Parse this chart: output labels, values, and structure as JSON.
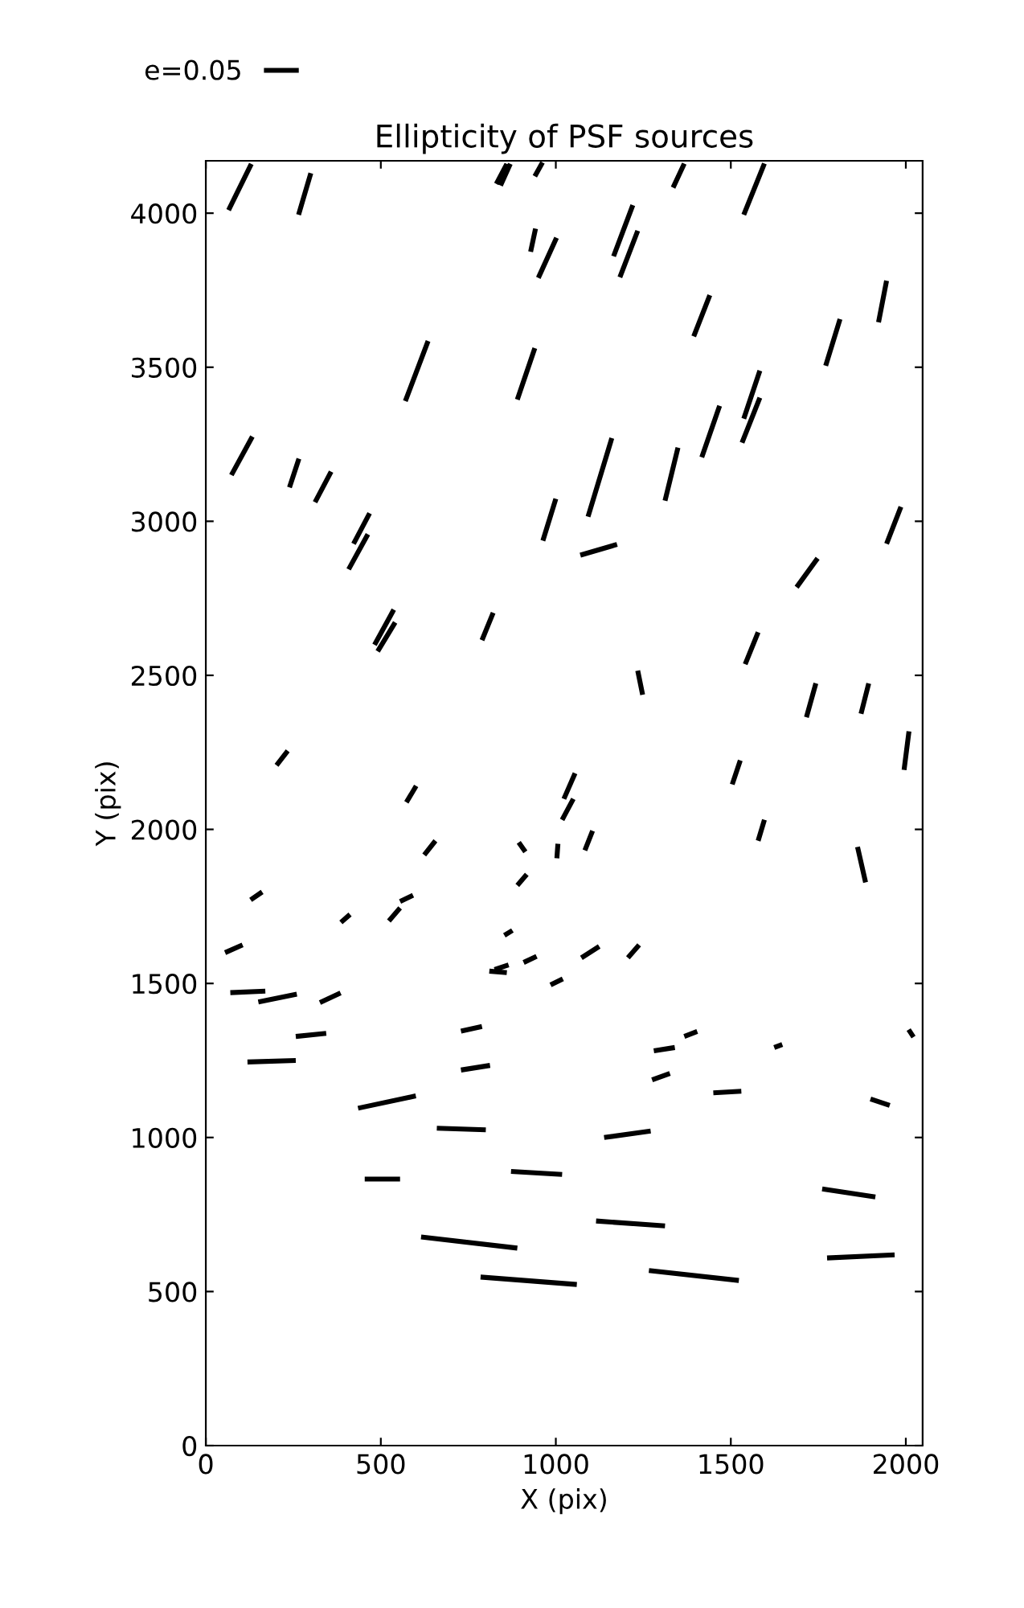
{
  "chart_data": {
    "type": "line",
    "title": "Ellipticity of PSF sources",
    "xlabel": "X (pix)",
    "ylabel": "Y (pix)",
    "xlim": [
      0,
      2048
    ],
    "ylim": [
      0,
      4170
    ],
    "xticks": [
      0,
      500,
      1000,
      1500,
      2000
    ],
    "yticks": [
      0,
      500,
      1000,
      1500,
      2000,
      2500,
      3000,
      3500,
      4000
    ],
    "grid": false,
    "legend": "top left",
    "marker": "none",
    "line_style": "solid",
    "series": [
      {
        "name": "e=0.05",
        "color": "#000000",
        "x": [
          65,
          130,
          null,
          265,
          300,
          null,
          830,
          860,
          null,
          842,
          870,
          null,
          940,
          962,
          null,
          928,
          942,
          null,
          950,
          1002,
          null,
          570,
          635,
          null,
          890,
          940,
          null,
          73,
          133,
          null,
          239,
          266,
          null,
          312,
          358,
          null,
          422,
          468,
          null,
          408,
          463,
          null,
          963,
          1000,
          null,
          1335,
          1367,
          null,
          1537,
          1596,
          null,
          1165,
          1220,
          null,
          1183,
          1234,
          null,
          1394,
          1440,
          null,
          1922,
          1945,
          null,
          1771,
          1812,
          null,
          1537,
          1583,
          null,
          1532,
          1583,
          null,
          1417,
          1468,
          null,
          1092,
          1160,
          null,
          1312,
          1349,
          null,
          1070,
          1175,
          null,
          1945,
          1986,
          null,
          1688,
          1748,
          null,
          482,
          537,
          null,
          491,
          541,
          null,
          789,
          821,
          null,
          202,
          234,
          null,
          573,
          601,
          null,
          624,
          656,
          null,
          894,
          913,
          null,
          1003,
          1006,
          null,
          890,
          917,
          null,
          128,
          161,
          null,
          386,
          412,
          null,
          523,
          555,
          null,
          555,
          592,
          null,
          853,
          876,
          null,
          810,
          860,
          null,
          825,
          865,
          null,
          908,
          945,
          null,
          985,
          1020,
          null,
          55,
          105,
          null,
          70,
          170,
          null,
          150,
          260,
          null,
          326,
          385,
          null,
          729,
          789,
          null,
          1541,
          1578,
          null,
          1234,
          1248,
          null,
          1716,
          1743,
          null,
          1872,
          1894,
          null,
          1995,
          2009,
          null,
          1023,
          1055,
          null,
          1018,
          1050,
          null,
          1083,
          1105,
          null,
          1504,
          1527,
          null,
          1578,
          1596,
          null,
          1862,
          1885,
          null,
          1073,
          1124,
          null,
          1206,
          1238,
          null,
          257,
          344,
          null,
          119,
          257,
          null,
          729,
          812,
          null,
          435,
          600,
          null,
          660,
          800,
          null,
          454,
          555,
          null,
          872,
          1018,
          null,
          615,
          890,
          null,
          785,
          1060,
          null,
          1367,
          1404,
          null,
          1280,
          1340,
          null,
          1624,
          1647,
          null,
          2008,
          2022,
          null,
          1275,
          1326,
          null,
          1450,
          1530,
          null,
          1899,
          1954,
          null,
          1138,
          1271,
          null,
          1761,
          1913,
          null,
          1115,
          1312,
          null,
          1266,
          1523,
          null,
          1775,
          1968
        ],
        "values": [
          4010,
          4160,
          null,
          3995,
          4130,
          null,
          4095,
          4160,
          null,
          4090,
          4160,
          null,
          4120,
          4165,
          null,
          3875,
          3950,
          null,
          3790,
          3920,
          null,
          3390,
          3585,
          null,
          3395,
          3562,
          null,
          3150,
          3275,
          null,
          3110,
          3203,
          null,
          3062,
          3161,
          null,
          2927,
          3026,
          null,
          2844,
          2958,
          null,
          2937,
          3073,
          null,
          4083,
          4161,
          null,
          3995,
          4161,
          null,
          3860,
          4026,
          null,
          3792,
          3943,
          null,
          3600,
          3734,
          null,
          3646,
          3781,
          null,
          3505,
          3656,
          null,
          3333,
          3489,
          null,
          3255,
          3401,
          null,
          3208,
          3375,
          null,
          3015,
          3270,
          null,
          3067,
          3239,
          null,
          2890,
          2925,
          null,
          2927,
          3047,
          null,
          2786,
          2880,
          null,
          2599,
          2713,
          null,
          2578,
          2672,
          null,
          2614,
          2703,
          null,
          2208,
          2255,
          null,
          2088,
          2141,
          null,
          1917,
          1963,
          null,
          1958,
          1927,
          null,
          1906,
          1953,
          null,
          1818,
          1854,
          null,
          1771,
          1797,
          null,
          1698,
          1724,
          null,
          1703,
          1745,
          null,
          1766,
          1786,
          null,
          1656,
          1672,
          null,
          1540,
          1535,
          null,
          1545,
          1560,
          null,
          1568,
          1588,
          null,
          1495,
          1515,
          null,
          1600,
          1625,
          null,
          1470,
          1475,
          null,
          1440,
          1465,
          null,
          1438,
          1469,
          null,
          1345,
          1360,
          null,
          2536,
          2640,
          null,
          2515,
          2437,
          null,
          2364,
          2474,
          null,
          2375,
          2474,
          null,
          2193,
          2318,
          null,
          2099,
          2182,
          null,
          2031,
          2099,
          null,
          1932,
          1995,
          null,
          2146,
          2224,
          null,
          1963,
          2031,
          null,
          1943,
          1828,
          null,
          1583,
          1620,
          null,
          1583,
          1625,
          null,
          1328,
          1338,
          null,
          1245,
          1250,
          null,
          1219,
          1234,
          null,
          1095,
          1135,
          null,
          1030,
          1025,
          null,
          865,
          865,
          null,
          890,
          880,
          null,
          677,
          641,
          null,
          547,
          523,
          null,
          1328,
          1344,
          null,
          1281,
          1292,
          null,
          1292,
          1302,
          null,
          1350,
          1326,
          null,
          1187,
          1208,
          null,
          1145,
          1150,
          null,
          1125,
          1104,
          null,
          1000,
          1021,
          null,
          833,
          807,
          null,
          729,
          713,
          null,
          568,
          536,
          null,
          609,
          619
        ]
      }
    ]
  }
}
